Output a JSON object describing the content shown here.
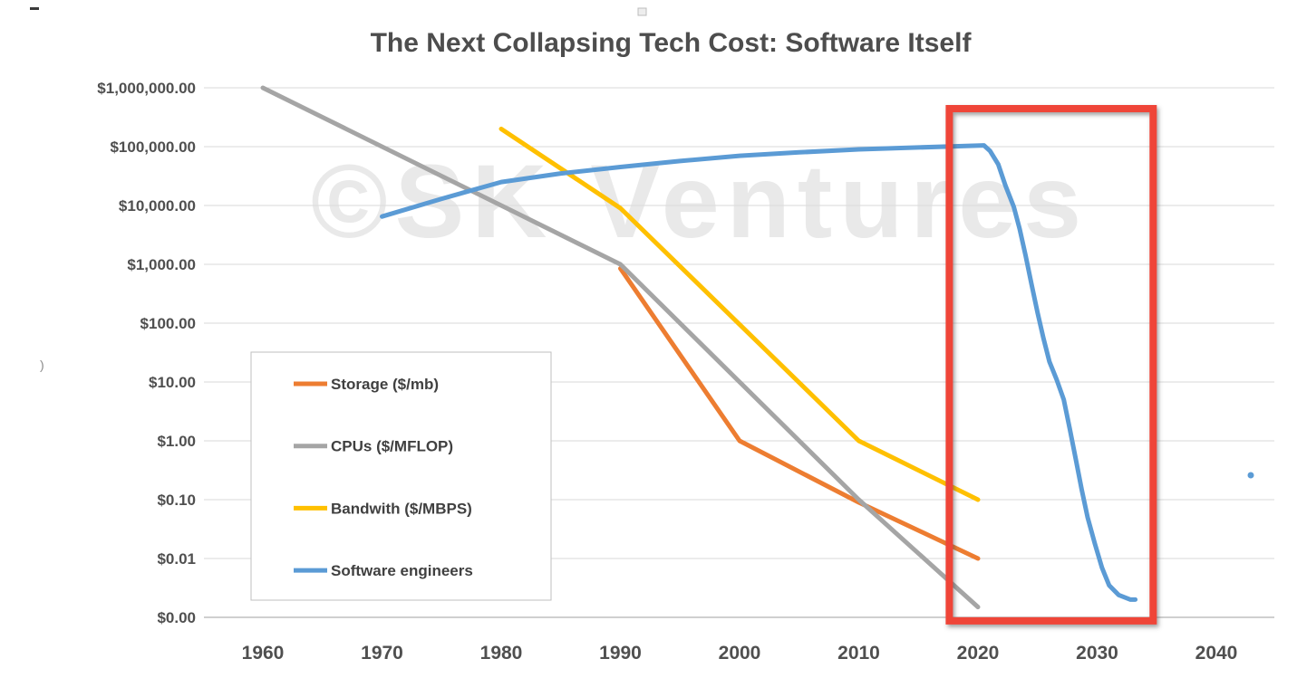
{
  "chart_data": {
    "type": "line",
    "title": "The Next Collapsing Tech Cost: Software Itself",
    "watermark": "©SK Ventures",
    "y_scale": "log",
    "grid": true,
    "x_range": [
      1960,
      2040
    ],
    "y_ticks": [
      {
        "label": "$1,000,000.00",
        "value": 1000000
      },
      {
        "label": "$100,000.00",
        "value": 100000
      },
      {
        "label": "$10,000.00",
        "value": 10000
      },
      {
        "label": "$1,000.00",
        "value": 1000
      },
      {
        "label": "$100.00",
        "value": 100
      },
      {
        "label": "$10.00",
        "value": 10
      },
      {
        "label": "$1.00",
        "value": 1
      },
      {
        "label": "$0.10",
        "value": 0.1
      },
      {
        "label": "$0.01",
        "value": 0.01
      },
      {
        "label": "$0.00",
        "value": 0.001
      }
    ],
    "x_ticks": [
      {
        "label": "1960",
        "value": 1960
      },
      {
        "label": "1970",
        "value": 1970
      },
      {
        "label": "1980",
        "value": 1980
      },
      {
        "label": "1990",
        "value": 1990
      },
      {
        "label": "2000",
        "value": 2000
      },
      {
        "label": "2010",
        "value": 2010
      },
      {
        "label": "2020",
        "value": 2020
      },
      {
        "label": "2030",
        "value": 2030
      },
      {
        "label": "2040",
        "value": 2040
      }
    ],
    "legend": {
      "position": "middle-left",
      "items": [
        "Storage ($/mb)",
        "CPUs ($/MFLOP)",
        "Bandwith ($/MBPS)",
        "Software engineers"
      ]
    },
    "series": [
      {
        "name": "Storage ($/mb)",
        "color": "#ED7D31",
        "points": [
          [
            1990,
            850
          ],
          [
            2000,
            1.0
          ],
          [
            2010,
            0.09
          ],
          [
            2020,
            0.01
          ]
        ]
      },
      {
        "name": "CPUs ($/MFLOP)",
        "color": "#A5A5A5",
        "points": [
          [
            1960,
            1000000
          ],
          [
            1990,
            1000
          ],
          [
            2000,
            10
          ],
          [
            2010,
            0.1
          ],
          [
            2020,
            0.0015
          ]
        ]
      },
      {
        "name": "Bandwith ($/MBPS)",
        "color": "#FFC000",
        "points": [
          [
            1980,
            200000
          ],
          [
            1990,
            9000
          ],
          [
            2000,
            95
          ],
          [
            2010,
            1.0
          ],
          [
            2020,
            0.1
          ]
        ]
      },
      {
        "name": "Software engineers",
        "color": "#5B9BD5",
        "points": [
          [
            1970,
            6500
          ],
          [
            1975,
            13000
          ],
          [
            1980,
            25000
          ],
          [
            1985,
            35000
          ],
          [
            1990,
            45000
          ],
          [
            1995,
            57000
          ],
          [
            2000,
            70000
          ],
          [
            2005,
            80000
          ],
          [
            2010,
            90000
          ],
          [
            2015,
            97000
          ],
          [
            2019,
            103000
          ],
          [
            2020.5,
            105000
          ],
          [
            2021,
            85000
          ],
          [
            2021.7,
            50000
          ],
          [
            2022.3,
            22000
          ],
          [
            2023,
            9500
          ],
          [
            2023.5,
            4000
          ],
          [
            2024,
            1400
          ],
          [
            2024.5,
            450
          ],
          [
            2025,
            150
          ],
          [
            2025.5,
            55
          ],
          [
            2026,
            22
          ],
          [
            2026.6,
            11
          ],
          [
            2027.2,
            5
          ],
          [
            2027.7,
            1.6
          ],
          [
            2028.2,
            0.5
          ],
          [
            2028.7,
            0.15
          ],
          [
            2029.2,
            0.05
          ],
          [
            2029.8,
            0.018
          ],
          [
            2030.4,
            0.007
          ],
          [
            2031,
            0.0035
          ],
          [
            2031.8,
            0.0024
          ],
          [
            2032.8,
            0.002
          ],
          [
            2033.2,
            0.002
          ]
        ]
      }
    ],
    "highlight_box": {
      "color": "#EF4539",
      "x_from_year": 2017.6,
      "x_to_year": 2034.7,
      "y_top_value": 443000,
      "y_bottom_value": 0.00087
    }
  },
  "artifacts": {
    "paren": ")"
  }
}
